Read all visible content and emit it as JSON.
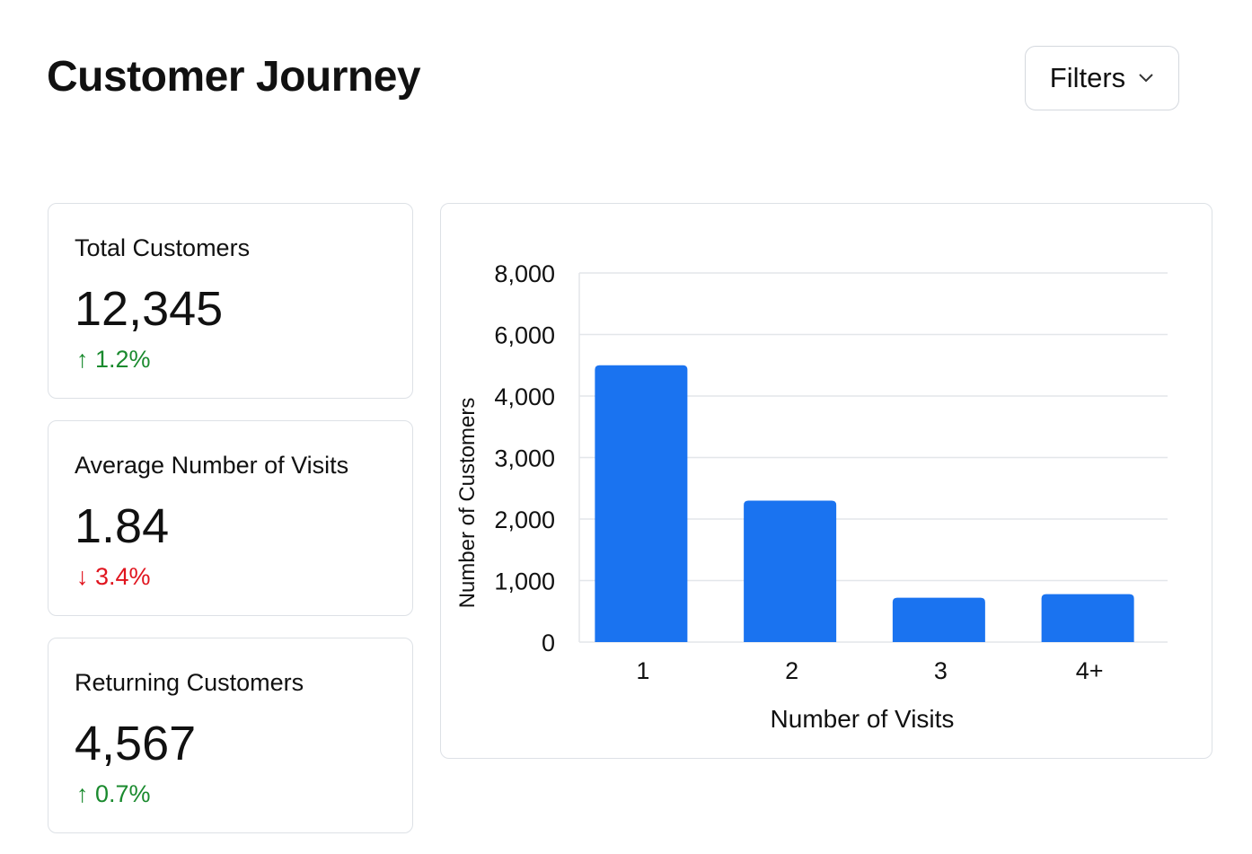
{
  "header": {
    "title": "Customer Journey",
    "filters_label": "Filters"
  },
  "cards": [
    {
      "label": "Total Customers",
      "value": "12,345",
      "change": "1.2%",
      "direction": "up"
    },
    {
      "label": "Average Number of Visits",
      "value": "1.84",
      "change": "3.4%",
      "direction": "down"
    },
    {
      "label": "Returning Customers",
      "value": "4,567",
      "change": "0.7%",
      "direction": "up"
    }
  ],
  "colors": {
    "bar": "#1a73f0",
    "up": "#1a8a2e",
    "down": "#e0141e"
  },
  "chart_data": {
    "type": "bar",
    "title": "",
    "xlabel": "Number of Visits",
    "ylabel": "Number of Customers",
    "categories": [
      "1",
      "2",
      "3",
      "4+"
    ],
    "values": [
      5000,
      2300,
      720,
      780
    ],
    "yticks": [
      0,
      1000,
      2000,
      3000,
      4000,
      6000,
      8000
    ],
    "ytick_labels": [
      "0",
      "1,000",
      "2,000",
      "3,000",
      "4,000",
      "6,000",
      "8,000"
    ],
    "ylim": [
      0,
      8000
    ],
    "grid": true
  }
}
